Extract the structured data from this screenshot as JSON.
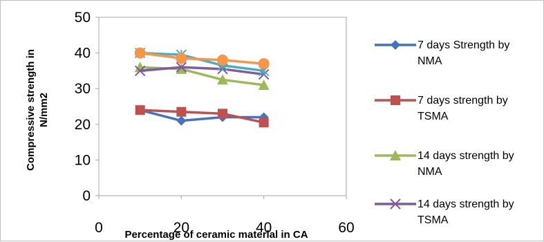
{
  "chart_data": {
    "type": "line",
    "title": "",
    "xlabel": "Percentage of ceramic material in CA",
    "ylabel": "Compressive strength in N/mm2",
    "xlim": [
      0,
      60
    ],
    "ylim": [
      0,
      50
    ],
    "xticks": [
      "0",
      "20",
      "40",
      "60"
    ],
    "yticks": [
      "0",
      "10",
      "20",
      "30",
      "40",
      "50"
    ],
    "grid": false,
    "legend": "right",
    "x": [
      10,
      20,
      30,
      40
    ],
    "series": [
      {
        "name": "7 days Strength by NMA",
        "values": [
          24,
          21,
          22,
          22
        ],
        "color": "#4472c4",
        "marker": "diamond"
      },
      {
        "name": "7 days strength by TSMA",
        "values": [
          24,
          23.5,
          23,
          20.5
        ],
        "color": "#c0504d",
        "marker": "square"
      },
      {
        "name": "14 days strength by NMA",
        "values": [
          36,
          35.5,
          32.5,
          31
        ],
        "color": "#9bbb59",
        "marker": "triangle"
      },
      {
        "name": "14 days strength by TSMA",
        "values": [
          35,
          36,
          35.5,
          34
        ],
        "color": "#7f5aa0",
        "marker": "x"
      },
      {
        "name": "",
        "values": [
          40,
          39.5,
          36.5,
          35
        ],
        "color": "#4bacc6",
        "marker": "star"
      },
      {
        "name": "",
        "values": [
          40,
          38.5,
          38,
          37
        ],
        "color": "#f79646",
        "marker": "circle"
      }
    ],
    "legend_lines": [
      [
        "7 days Strength by",
        "NMA"
      ],
      [
        "7 days strength by",
        "TSMA"
      ],
      [
        "14 days strength by",
        "NMA"
      ],
      [
        "14 days strength by",
        "TSMA"
      ]
    ]
  }
}
